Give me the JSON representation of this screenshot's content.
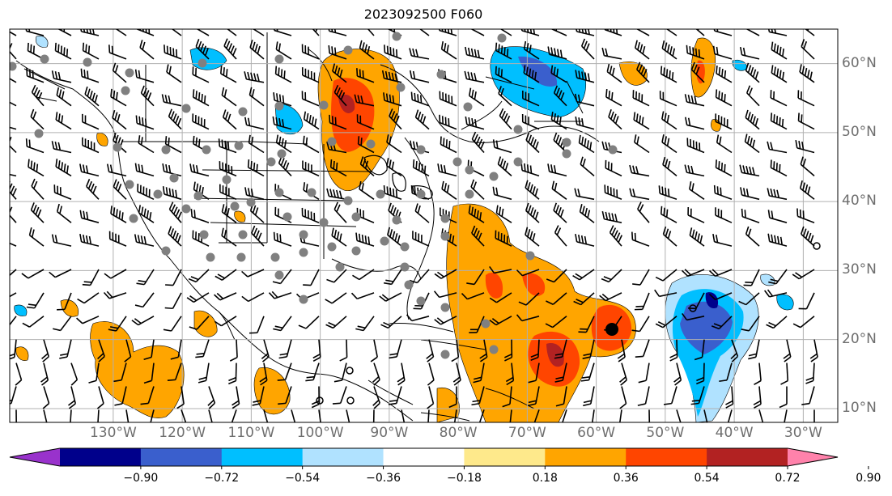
{
  "title": "2023092500 F060",
  "map": {
    "lat_labels": [
      "60°N",
      "50°N",
      "40°N",
      "30°N",
      "20°N",
      "10°N"
    ],
    "lon_labels": [
      "130°W",
      "120°W",
      "110°W",
      "100°W",
      "90°W",
      "80°W",
      "70°W",
      "60°W",
      "50°W",
      "40°W",
      "30°W"
    ],
    "lat_values": [
      60,
      50,
      40,
      30,
      20,
      10
    ],
    "lon_values": [
      -130,
      -120,
      -110,
      -100,
      -90,
      -80,
      -70,
      -60,
      -50,
      -40,
      -30
    ],
    "lon_range": [
      -145,
      -25
    ],
    "lat_range": [
      8,
      65
    ],
    "grid": true
  },
  "colorbar": {
    "colors": [
      "#9932cc",
      "#00008b",
      "#3a5fcd",
      "#00bfff",
      "#b0e2ff",
      "#ffffff",
      "#fee98b",
      "#ffa500",
      "#ff4500",
      "#b22222",
      "#ff82ab"
    ],
    "ticks": [
      "−0.90",
      "−0.72",
      "−0.54",
      "−0.36",
      "−0.18",
      "0.18",
      "0.36",
      "0.54",
      "0.72",
      "0.90"
    ],
    "extend": "both"
  },
  "legend_colors": {
    "orange": "#ffa500",
    "red": "#ff4500",
    "darkred": "#b22222",
    "lightblue": "#00bfff",
    "blue": "#3a5fcd",
    "paleblue": "#b0e2ff",
    "marker_gray": "#808080"
  }
}
